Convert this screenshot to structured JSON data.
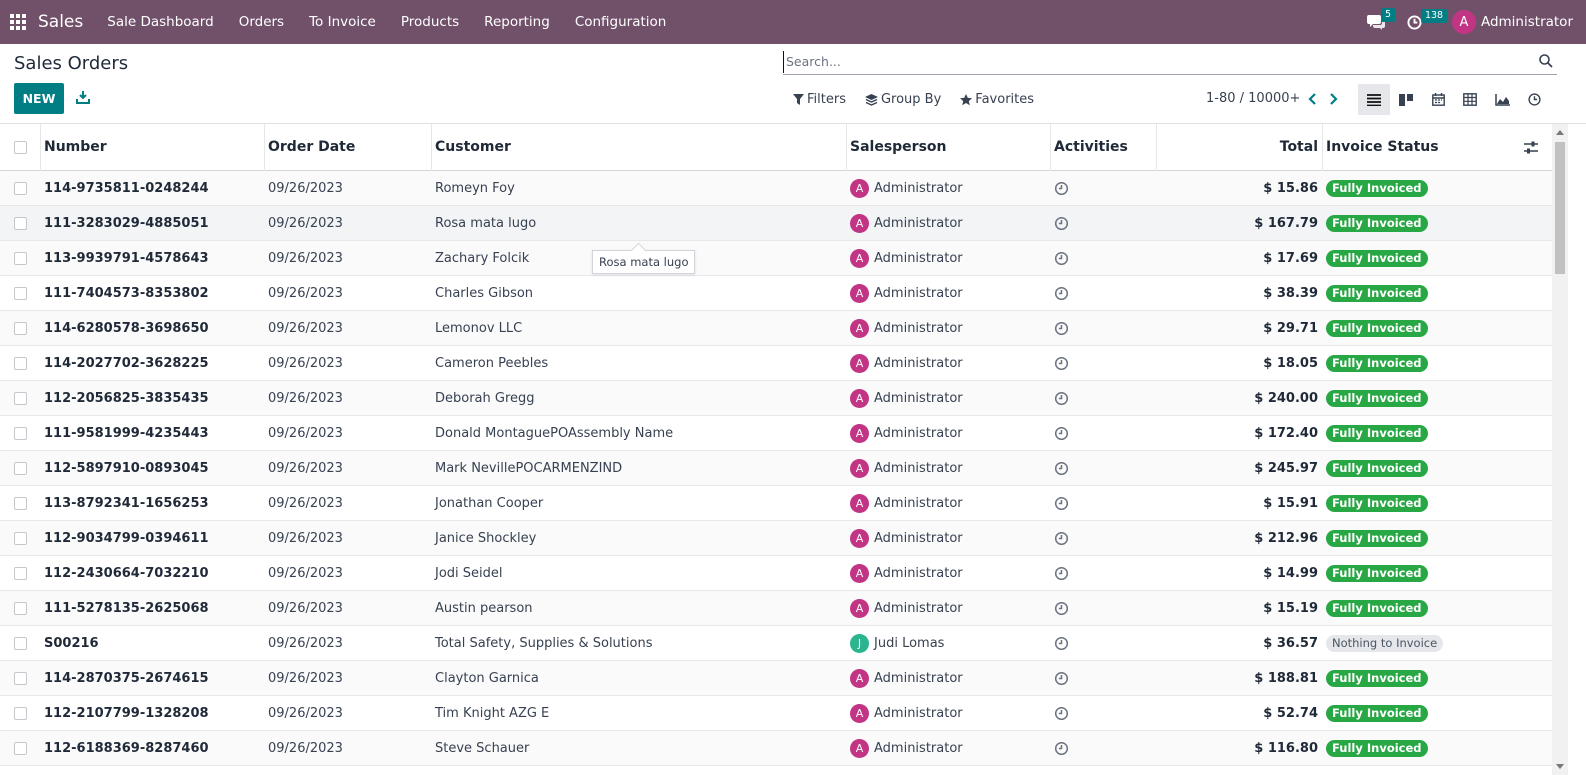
{
  "navbar": {
    "app_name": "Sales",
    "menu": [
      "Sale Dashboard",
      "Orders",
      "To Invoice",
      "Products",
      "Reporting",
      "Configuration"
    ],
    "messages_count": "5",
    "activities_count": "138",
    "user_initial": "A",
    "user_name": "Administrator"
  },
  "control_panel": {
    "title": "Sales Orders",
    "new_label": "NEW",
    "search_placeholder": "Search...",
    "filters_label": "Filters",
    "groupby_label": "Group By",
    "favorites_label": "Favorites",
    "pager": "1-80 / 10000+"
  },
  "columns": {
    "number": "Number",
    "order_date": "Order Date",
    "customer": "Customer",
    "salesperson": "Salesperson",
    "activities": "Activities",
    "total": "Total",
    "invoice_status": "Invoice Status"
  },
  "rows": [
    {
      "number": "114-9735811-0248244",
      "date": "09/26/2023",
      "customer": "Romeyn Foy",
      "sp_initial": "A",
      "salesperson": "Administrator",
      "total": "$ 15.86",
      "status": "Fully Invoiced"
    },
    {
      "number": "111-3283029-4885051",
      "date": "09/26/2023",
      "customer": "Rosa mata lugo",
      "sp_initial": "A",
      "salesperson": "Administrator",
      "total": "$ 167.79",
      "status": "Fully Invoiced"
    },
    {
      "number": "113-9939791-4578643",
      "date": "09/26/2023",
      "customer": "Zachary Folcik",
      "sp_initial": "A",
      "salesperson": "Administrator",
      "total": "$ 17.69",
      "status": "Fully Invoiced"
    },
    {
      "number": "111-7404573-8353802",
      "date": "09/26/2023",
      "customer": "Charles Gibson",
      "sp_initial": "A",
      "salesperson": "Administrator",
      "total": "$ 38.39",
      "status": "Fully Invoiced"
    },
    {
      "number": "114-6280578-3698650",
      "date": "09/26/2023",
      "customer": "Lemonov LLC",
      "sp_initial": "A",
      "salesperson": "Administrator",
      "total": "$ 29.71",
      "status": "Fully Invoiced"
    },
    {
      "number": "114-2027702-3628225",
      "date": "09/26/2023",
      "customer": "Cameron Peebles",
      "sp_initial": "A",
      "salesperson": "Administrator",
      "total": "$ 18.05",
      "status": "Fully Invoiced"
    },
    {
      "number": "112-2056825-3835435",
      "date": "09/26/2023",
      "customer": "Deborah Gregg",
      "sp_initial": "A",
      "salesperson": "Administrator",
      "total": "$ 240.00",
      "status": "Fully Invoiced"
    },
    {
      "number": "111-9581999-4235443",
      "date": "09/26/2023",
      "customer": "Donald MontaguePOAssembly Name",
      "sp_initial": "A",
      "salesperson": "Administrator",
      "total": "$ 172.40",
      "status": "Fully Invoiced"
    },
    {
      "number": "112-5897910-0893045",
      "date": "09/26/2023",
      "customer": "Mark NevillePOCARMENZIND",
      "sp_initial": "A",
      "salesperson": "Administrator",
      "total": "$ 245.97",
      "status": "Fully Invoiced"
    },
    {
      "number": "113-8792341-1656253",
      "date": "09/26/2023",
      "customer": "Jonathan Cooper",
      "sp_initial": "A",
      "salesperson": "Administrator",
      "total": "$ 15.91",
      "status": "Fully Invoiced"
    },
    {
      "number": "112-9034799-0394611",
      "date": "09/26/2023",
      "customer": "Janice Shockley",
      "sp_initial": "A",
      "salesperson": "Administrator",
      "total": "$ 212.96",
      "status": "Fully Invoiced"
    },
    {
      "number": "112-2430664-7032210",
      "date": "09/26/2023",
      "customer": "Jodi Seidel",
      "sp_initial": "A",
      "salesperson": "Administrator",
      "total": "$ 14.99",
      "status": "Fully Invoiced"
    },
    {
      "number": "111-5278135-2625068",
      "date": "09/26/2023",
      "customer": "Austin pearson",
      "sp_initial": "A",
      "salesperson": "Administrator",
      "total": "$ 15.19",
      "status": "Fully Invoiced"
    },
    {
      "number": "S00216",
      "date": "09/26/2023",
      "customer": "Total Safety, Supplies & Solutions",
      "sp_initial": "J",
      "salesperson": "Judi Lomas",
      "total": "$ 36.57",
      "status": "Nothing to Invoice"
    },
    {
      "number": "114-2870375-2674615",
      "date": "09/26/2023",
      "customer": "Clayton Garnica",
      "sp_initial": "A",
      "salesperson": "Administrator",
      "total": "$ 188.81",
      "status": "Fully Invoiced"
    },
    {
      "number": "112-2107799-1328208",
      "date": "09/26/2023",
      "customer": "Tim Knight AZG E",
      "sp_initial": "A",
      "salesperson": "Administrator",
      "total": "$ 52.74",
      "status": "Fully Invoiced"
    },
    {
      "number": "112-6188369-8287460",
      "date": "09/26/2023",
      "customer": "Steve Schauer",
      "sp_initial": "A",
      "salesperson": "Administrator",
      "total": "$ 116.80",
      "status": "Fully Invoiced"
    }
  ],
  "tooltip": "Rosa mata lugo",
  "colors": {
    "navbar": "#71506a",
    "primary": "#017e84",
    "avatar_admin": "#c13584",
    "avatar_judi": "#2bb58f",
    "badge_success": "#28a745"
  }
}
